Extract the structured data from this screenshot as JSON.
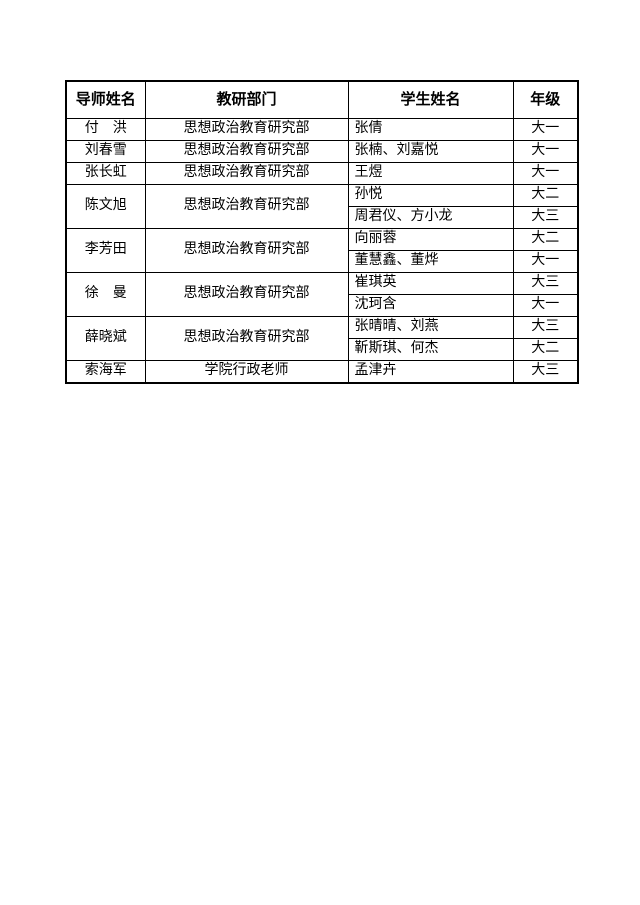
{
  "table": {
    "headers": {
      "tutor": "导师姓名",
      "department": "教研部门",
      "student": "学生姓名",
      "grade": "年级"
    },
    "groups": [
      {
        "tutor": "付　洪",
        "department": "思想政治教育研究部",
        "students": [
          {
            "names": "张倩",
            "grade": "大一"
          }
        ]
      },
      {
        "tutor": "刘春雪",
        "department": "思想政治教育研究部",
        "students": [
          {
            "names": "张楠、刘嘉悦",
            "grade": "大一"
          }
        ]
      },
      {
        "tutor": "张长虹",
        "department": "思想政治教育研究部",
        "students": [
          {
            "names": "王煜",
            "grade": "大一"
          }
        ]
      },
      {
        "tutor": "陈文旭",
        "department": "思想政治教育研究部",
        "students": [
          {
            "names": "孙悦",
            "grade": "大二"
          },
          {
            "names": "周君仪、方小龙",
            "grade": "大三"
          }
        ]
      },
      {
        "tutor": "李芳田",
        "department": "思想政治教育研究部",
        "students": [
          {
            "names": "向丽蓉",
            "grade": "大二"
          },
          {
            "names": "董慧鑫、董烨",
            "grade": "大一"
          }
        ]
      },
      {
        "tutor": "徐　曼",
        "department": "思想政治教育研究部",
        "students": [
          {
            "names": "崔琪英",
            "grade": "大三"
          },
          {
            "names": "沈珂含",
            "grade": "大一"
          }
        ]
      },
      {
        "tutor": "薛晓斌",
        "department": "思想政治教育研究部",
        "students": [
          {
            "names": "张晴晴、刘燕",
            "grade": "大三"
          },
          {
            "names": "靳斯琪、何杰",
            "grade": "大二"
          }
        ]
      },
      {
        "tutor": "索海军",
        "department": "学院行政老师",
        "students": [
          {
            "names": "孟津卉",
            "grade": "大三"
          }
        ]
      }
    ]
  }
}
